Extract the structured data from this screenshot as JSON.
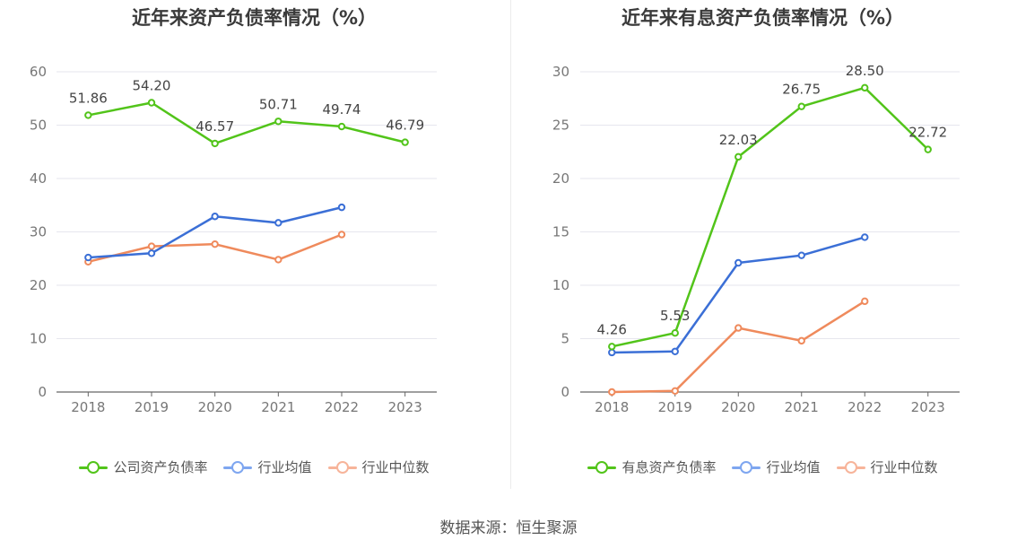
{
  "chart_data": [
    {
      "type": "line",
      "title": "近年来资产负债率情况（%）",
      "categories": [
        "2018",
        "2019",
        "2020",
        "2021",
        "2022",
        "2023"
      ],
      "ylim": [
        0,
        60
      ],
      "yticks": [
        0,
        10,
        20,
        30,
        40,
        50,
        60
      ],
      "series": [
        {
          "name": "公司资产负债率",
          "color": "#52c41a",
          "values": [
            51.86,
            54.2,
            46.57,
            50.71,
            49.74,
            46.79
          ],
          "labels": [
            "51.86",
            "54.20",
            "46.57",
            "50.71",
            "49.74",
            "46.79"
          ]
        },
        {
          "name": "行业均值",
          "color": "#3b6fd6",
          "values": [
            25.2,
            26.0,
            32.9,
            31.7,
            34.6,
            null
          ]
        },
        {
          "name": "行业中位数",
          "color": "#ef8a5c",
          "values": [
            24.4,
            27.3,
            27.7,
            24.8,
            29.5,
            null
          ]
        }
      ],
      "legend_colors": [
        "#52c41a",
        "#7ea6f0",
        "#f7b49a"
      ]
    },
    {
      "type": "line",
      "title": "近年来有息资产负债率情况（%）",
      "categories": [
        "2018",
        "2019",
        "2020",
        "2021",
        "2022",
        "2023"
      ],
      "ylim": [
        0,
        30
      ],
      "yticks": [
        0,
        5,
        10,
        15,
        20,
        25,
        30
      ],
      "series": [
        {
          "name": "有息资产负债率",
          "color": "#52c41a",
          "values": [
            4.26,
            5.53,
            22.03,
            26.75,
            28.5,
            22.72
          ],
          "labels": [
            "4.26",
            "5.53",
            "22.03",
            "26.75",
            "28.50",
            "22.72"
          ]
        },
        {
          "name": "行业均值",
          "color": "#3b6fd6",
          "values": [
            3.7,
            3.8,
            12.1,
            12.8,
            14.5,
            null
          ]
        },
        {
          "name": "行业中位数",
          "color": "#ef8a5c",
          "values": [
            0.0,
            0.1,
            6.0,
            4.8,
            8.5,
            null
          ]
        }
      ],
      "legend_colors": [
        "#52c41a",
        "#7ea6f0",
        "#f7b49a"
      ]
    }
  ],
  "source": "数据来源：恒生聚源"
}
